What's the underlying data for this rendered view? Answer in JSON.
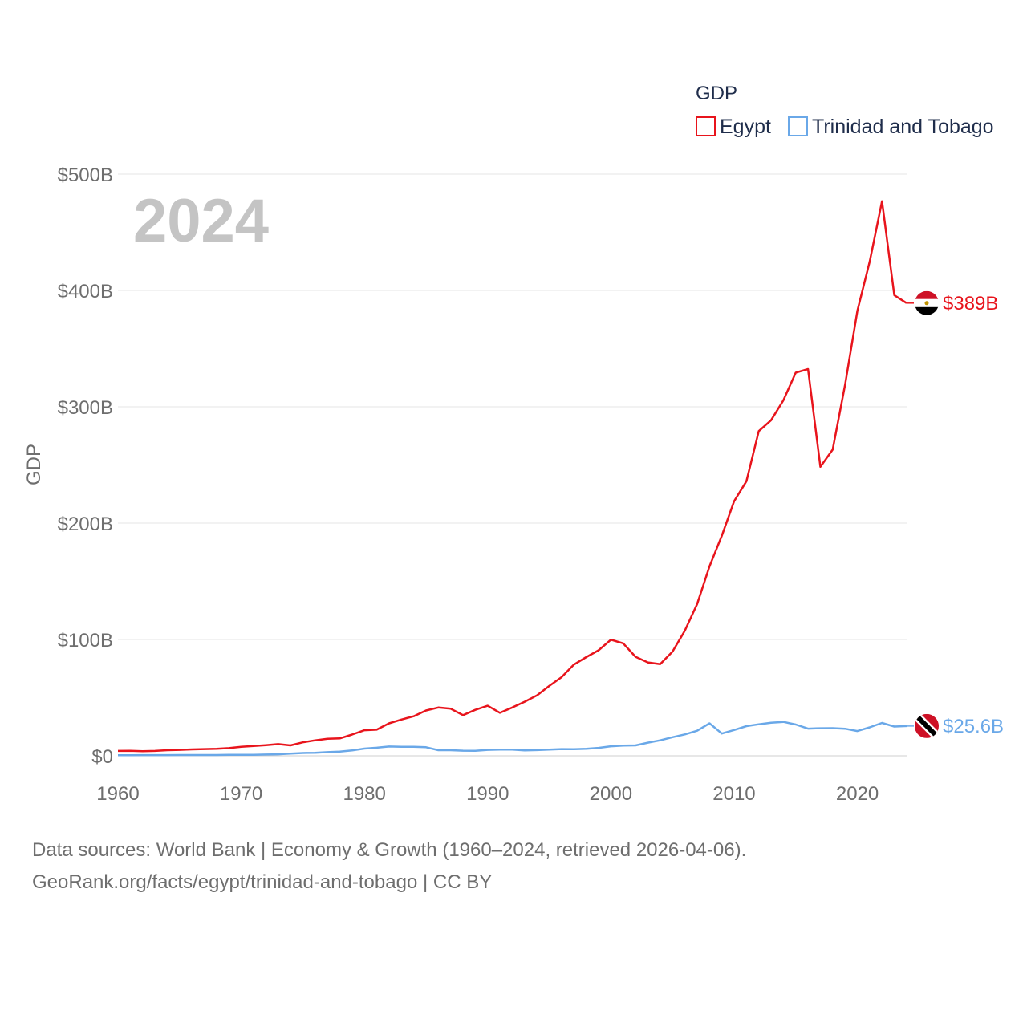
{
  "chart_data": {
    "type": "line",
    "title": "GDP",
    "ylabel": "GDP",
    "xlabel": "",
    "year_label": "2024",
    "xlim": [
      1960,
      2024
    ],
    "ylim": [
      0,
      500
    ],
    "x_ticks": [
      1960,
      1970,
      1980,
      1990,
      2000,
      2010,
      2020
    ],
    "x_tick_labels": [
      "1960",
      "1970",
      "1980",
      "1990",
      "2000",
      "2010",
      "2020"
    ],
    "y_ticks": [
      0,
      100,
      200,
      300,
      400,
      500
    ],
    "y_tick_labels": [
      "$0",
      "$100B",
      "$200B",
      "$300B",
      "$400B",
      "$500B"
    ],
    "legend_title": "GDP",
    "legend_position": "top-right",
    "grid": true,
    "x": [
      1960,
      1961,
      1962,
      1963,
      1964,
      1965,
      1966,
      1967,
      1968,
      1969,
      1970,
      1971,
      1972,
      1973,
      1974,
      1975,
      1976,
      1977,
      1978,
      1979,
      1980,
      1981,
      1982,
      1983,
      1984,
      1985,
      1986,
      1987,
      1988,
      1989,
      1990,
      1991,
      1992,
      1993,
      1994,
      1995,
      1996,
      1997,
      1998,
      1999,
      2000,
      2001,
      2002,
      2003,
      2004,
      2005,
      2006,
      2007,
      2008,
      2009,
      2010,
      2011,
      2012,
      2013,
      2014,
      2015,
      2016,
      2017,
      2018,
      2019,
      2020,
      2021,
      2022,
      2023,
      2024
    ],
    "series": [
      {
        "name": "Egypt",
        "color": "#e8141c",
        "end_label": "$389B",
        "flag": "egypt-flag",
        "values": [
          4.2,
          4.3,
          4.0,
          4.2,
          4.8,
          5.1,
          5.5,
          5.8,
          6.0,
          6.6,
          7.8,
          8.5,
          9.2,
          10.1,
          9.0,
          11.6,
          13.3,
          14.7,
          15.0,
          18.3,
          22.0,
          22.5,
          27.9,
          31.2,
          34.0,
          39.0,
          41.5,
          40.5,
          35.0,
          39.5,
          43.0,
          37.0,
          41.5,
          46.5,
          51.9,
          60.1,
          67.6,
          78.4,
          84.8,
          90.7,
          99.8,
          96.7,
          85.1,
          80.3,
          78.8,
          89.6,
          107.5,
          130.5,
          162.8,
          189.1,
          218.9,
          236.0,
          279.1,
          288.4,
          305.6,
          329.4,
          332.4,
          248.4,
          263.2,
          318.7,
          382.5,
          424.7,
          476.7,
          395.9,
          389.1
        ]
      },
      {
        "name": "Trinidad and Tobago",
        "color": "#6aa8e8",
        "end_label": "$25.6B",
        "flag": "trinidad-flag",
        "values": [
          0.5,
          0.5,
          0.6,
          0.6,
          0.6,
          0.7,
          0.7,
          0.7,
          0.7,
          0.8,
          0.8,
          0.9,
          1.1,
          1.3,
          1.9,
          2.4,
          2.6,
          3.2,
          3.6,
          4.6,
          6.2,
          7.0,
          8.0,
          7.8,
          7.7,
          7.4,
          4.8,
          4.8,
          4.4,
          4.3,
          5.1,
          5.3,
          5.4,
          4.7,
          4.9,
          5.3,
          5.8,
          5.7,
          6.0,
          6.8,
          8.2,
          8.8,
          9.0,
          11.3,
          13.3,
          16.0,
          18.4,
          21.6,
          27.9,
          19.2,
          22.2,
          25.5,
          27.1,
          28.4,
          29.2,
          26.9,
          23.4,
          23.7,
          23.8,
          23.3,
          21.3,
          24.5,
          28.3,
          25.2,
          25.6
        ]
      }
    ]
  },
  "source": {
    "line1": "Data sources: World Bank | Economy & Growth (1960–2024, retrieved 2026-04-06).",
    "line2": "GeoRank.org/facts/egypt/trinidad-and-tobago | CC BY"
  }
}
